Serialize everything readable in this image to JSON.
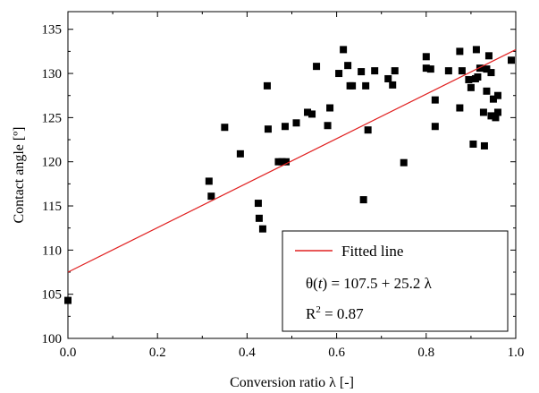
{
  "chart_data": {
    "type": "scatter",
    "title": "",
    "xlabel": "Conversion ratio λ [-]",
    "ylabel": "Contact angle [º]",
    "xlim": [
      0.0,
      1.0
    ],
    "ylim": [
      100,
      137
    ],
    "x_ticks": [
      0.0,
      0.2,
      0.4,
      0.6,
      0.8,
      1.0
    ],
    "x_tick_labels": [
      "0.0",
      "0.2",
      "0.4",
      "0.6",
      "0.8",
      "1.0"
    ],
    "y_ticks": [
      100,
      105,
      110,
      115,
      120,
      125,
      130,
      135
    ],
    "y_tick_labels": [
      "100",
      "105",
      "110",
      "115",
      "120",
      "125",
      "130",
      "135"
    ],
    "grid": false,
    "legend_position": "bottom-right",
    "points": {
      "marker": "square",
      "color": "#000000",
      "x": [
        0.0,
        0.315,
        0.32,
        0.35,
        0.385,
        0.425,
        0.427,
        0.435,
        0.445,
        0.447,
        0.47,
        0.478,
        0.485,
        0.487,
        0.51,
        0.535,
        0.545,
        0.555,
        0.58,
        0.585,
        0.605,
        0.615,
        0.625,
        0.63,
        0.635,
        0.655,
        0.66,
        0.665,
        0.67,
        0.685,
        0.715,
        0.725,
        0.73,
        0.75,
        0.8,
        0.8,
        0.81,
        0.82,
        0.82,
        0.85,
        0.875,
        0.875,
        0.88,
        0.895,
        0.9,
        0.905,
        0.91,
        0.912,
        0.915,
        0.92,
        0.928,
        0.93,
        0.935,
        0.935,
        0.94,
        0.945,
        0.945,
        0.95,
        0.955,
        0.96,
        0.96,
        0.99
      ],
      "y": [
        104.3,
        117.8,
        116.1,
        123.9,
        120.9,
        115.3,
        113.6,
        112.4,
        128.6,
        123.7,
        120.0,
        120.0,
        124.0,
        120.0,
        124.4,
        125.6,
        125.4,
        130.8,
        124.1,
        126.1,
        130.0,
        132.7,
        130.9,
        128.6,
        128.6,
        130.2,
        115.7,
        128.6,
        123.6,
        130.3,
        129.4,
        128.7,
        130.3,
        119.9,
        131.9,
        130.6,
        130.5,
        127.0,
        124.0,
        130.3,
        132.5,
        126.1,
        130.3,
        129.3,
        128.4,
        122.0,
        129.4,
        132.7,
        129.6,
        130.6,
        125.6,
        121.8,
        128.0,
        130.5,
        132.0,
        130.1,
        125.2,
        127.1,
        125.0,
        125.6,
        127.5,
        131.5
      ]
    },
    "fit": {
      "name": "Fitted line",
      "color": "#e02020",
      "intercept": 107.5,
      "slope": 25.2,
      "x_range": [
        0.0,
        1.0
      ]
    },
    "legend": {
      "entries": [
        "Fitted line"
      ],
      "equation_pre": "θ(",
      "equation_var": "t",
      "equation_post": ") = 107.5 + 25.2 λ",
      "r2_label": "R",
      "r2_sup": "2",
      "r2_value": " = 0.87"
    }
  }
}
